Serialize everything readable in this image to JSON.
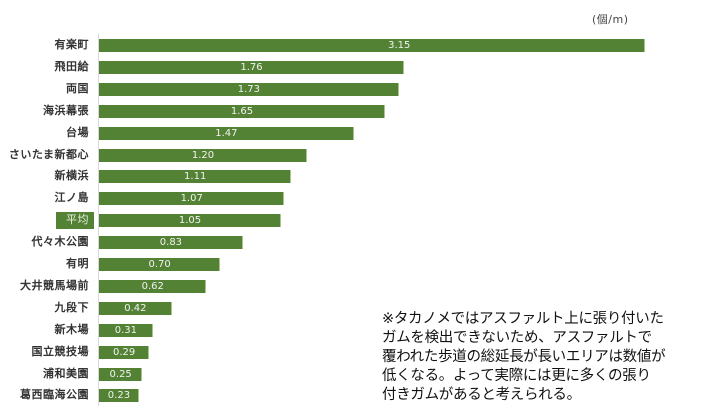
{
  "chart_data": {
    "type": "bar",
    "orientation": "horizontal",
    "title": "",
    "unit": "(個/m)",
    "xlabel": "",
    "ylabel": "",
    "xlim": [
      0,
      3.2
    ],
    "grid": false,
    "legend": null,
    "bar_color": "#548235",
    "highlight_category": "平均",
    "categories": [
      "有楽町",
      "飛田給",
      "両国",
      "海浜幕張",
      "台場",
      "さいたま新都心",
      "新横浜",
      "江ノ島",
      "平均",
      "代々木公園",
      "有明",
      "大井競馬場前",
      "九段下",
      "新木場",
      "国立競技場",
      "浦和美園",
      "葛西臨海公園"
    ],
    "values": [
      3.15,
      1.76,
      1.73,
      1.65,
      1.47,
      1.2,
      1.11,
      1.07,
      1.05,
      0.83,
      0.7,
      0.62,
      0.42,
      0.31,
      0.29,
      0.25,
      0.23
    ],
    "value_labels": [
      "3.15",
      "1.76",
      "1.73",
      "1.65",
      "1.47",
      "1.20",
      "1.11",
      "1.07",
      "1.05",
      "0.83",
      "0.70",
      "0.62",
      "0.42",
      "0.31",
      "0.29",
      "0.25",
      "0.23"
    ],
    "annotation": "※タカノメではアスファルト上に張り付いたガムを検出できないため、アスファルトで覆われた歩道の総延長が長いエリアは数値が低くなる。よって実際には更に多くの張り付きガムがあると考えられる。"
  },
  "unit_label": "(個/m)",
  "rows": [
    {
      "label": "有楽町",
      "value": "3.15"
    },
    {
      "label": "飛田給",
      "value": "1.76"
    },
    {
      "label": "両国",
      "value": "1.73"
    },
    {
      "label": "海浜幕張",
      "value": "1.65"
    },
    {
      "label": "台場",
      "value": "1.47"
    },
    {
      "label": "さいたま新都心",
      "value": "1.20"
    },
    {
      "label": "新横浜",
      "value": "1.11"
    },
    {
      "label": "江ノ島",
      "value": "1.07"
    },
    {
      "label": "平均",
      "value": "1.05"
    },
    {
      "label": "代々木公園",
      "value": "0.83"
    },
    {
      "label": "有明",
      "value": "0.70"
    },
    {
      "label": "大井競馬場前",
      "value": "0.62"
    },
    {
      "label": "九段下",
      "value": "0.42"
    },
    {
      "label": "新木場",
      "value": "0.31"
    },
    {
      "label": "国立競技場",
      "value": "0.29"
    },
    {
      "label": "浦和美園",
      "value": "0.25"
    },
    {
      "label": "葛西臨海公園",
      "value": "0.23"
    }
  ],
  "note_lines": [
    "※タカノメではアスファルト上に張り付いた",
    "ガムを検出できないため、アスファルトで",
    "覆われた歩道の総延長が長いエリアは数値が",
    "低くなる。よって実際には更に多くの張り",
    "付きガムがあると考えられる。"
  ]
}
